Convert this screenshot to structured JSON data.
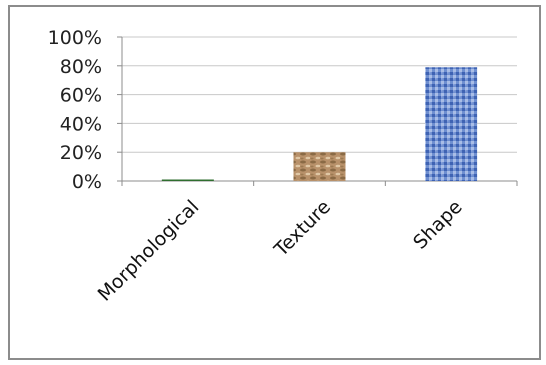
{
  "chart_data": {
    "type": "bar",
    "title": "",
    "xlabel": "",
    "ylabel": "",
    "categories": [
      "Morphological",
      "Texture",
      "Shape"
    ],
    "values": [
      1,
      20,
      79
    ],
    "ylim": [
      0,
      100
    ],
    "yticks": [
      0,
      20,
      40,
      60,
      80,
      100
    ],
    "ytick_labels": [
      "0%",
      "20%",
      "40%",
      "60%",
      "80%",
      "100%"
    ],
    "grid": true,
    "legend": "none",
    "bar_fills": [
      "solid-green",
      "brown-texture",
      "blue-texture"
    ]
  },
  "colors": {
    "gridline": "#c8c8c8",
    "axis": "#8c8c8c",
    "morphological_bar": "#2f6e2f",
    "texture_bar": "#b08a5a",
    "shape_bar": "#5d7fc4"
  }
}
